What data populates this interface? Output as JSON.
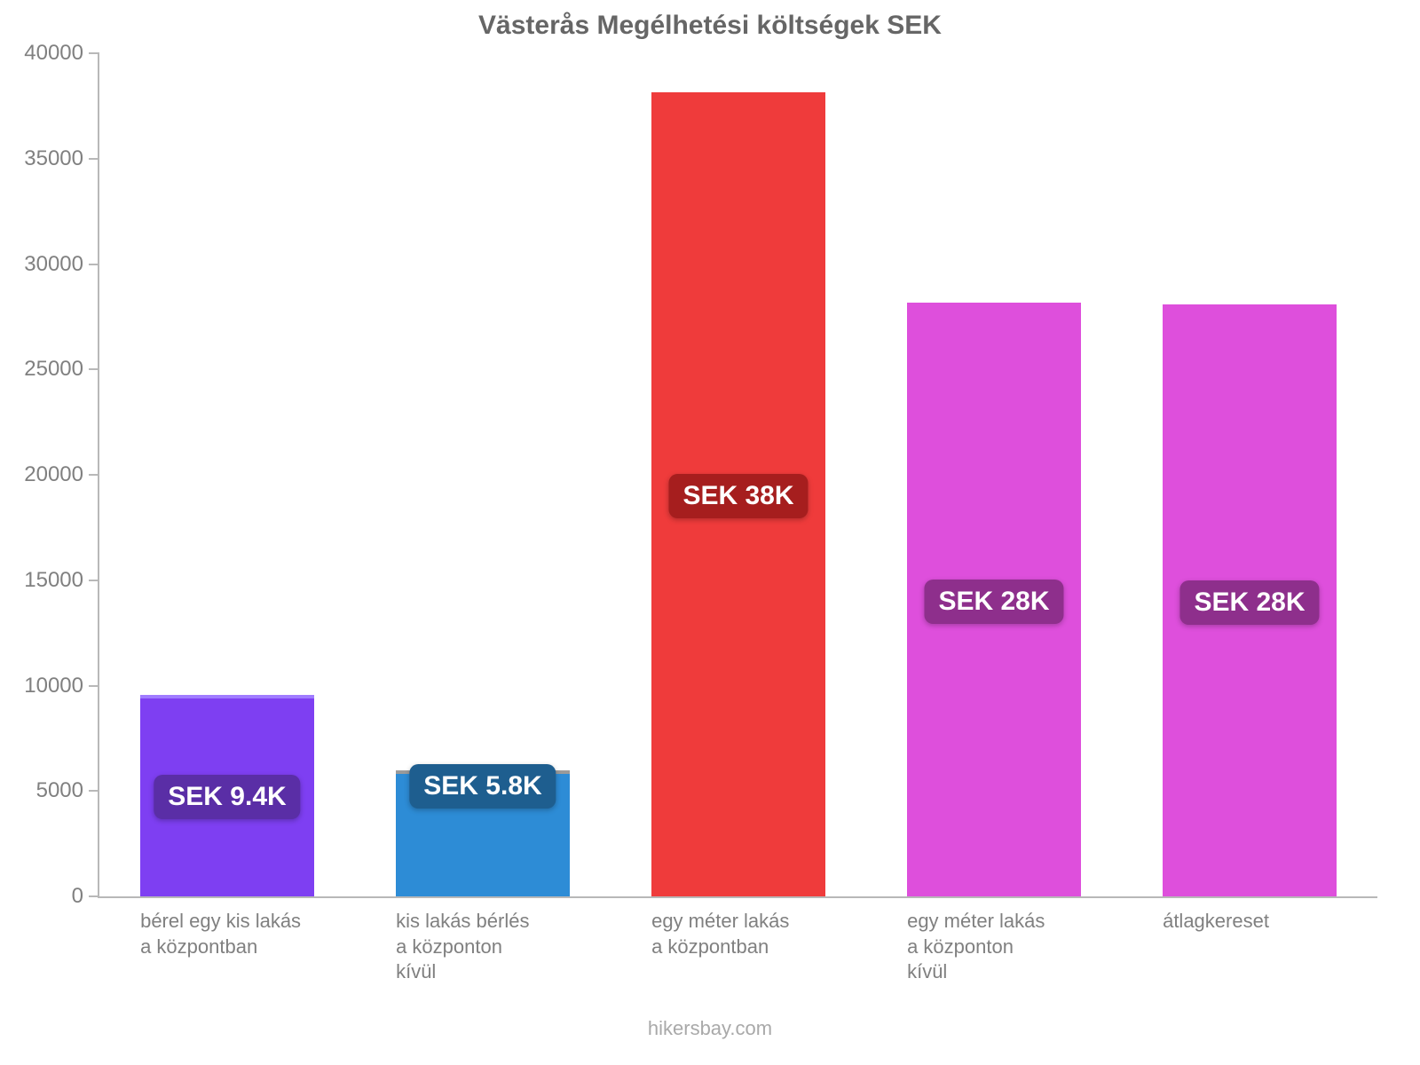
{
  "chart": {
    "type": "bar",
    "title": "Västerås Megélhetési költségek SEK",
    "title_fontsize": 30,
    "title_color": "#666666",
    "background_color": "#ffffff",
    "axis_color": "#b8b8b8",
    "tick_label_color": "#808080",
    "tick_label_fontsize": 24,
    "xlabel_fontsize": 22,
    "ylim_min": 0,
    "ylim_max": 40000,
    "ytick_step": 5000,
    "yticks": [
      {
        "v": 0,
        "label": "0"
      },
      {
        "v": 5000,
        "label": "5000"
      },
      {
        "v": 10000,
        "label": "10000"
      },
      {
        "v": 15000,
        "label": "15000"
      },
      {
        "v": 20000,
        "label": "20000"
      },
      {
        "v": 25000,
        "label": "25000"
      },
      {
        "v": 30000,
        "label": "30000"
      },
      {
        "v": 35000,
        "label": "35000"
      },
      {
        "v": 40000,
        "label": "40000"
      }
    ],
    "bar_width_ratio": 0.68,
    "value_label_fontsize": 30,
    "bars": [
      {
        "category": "bérel egy kis lakás\na központban",
        "value": 9400,
        "fill": "#7e3ff2",
        "top_line": "#a07cff",
        "value_label": "SEK 9.4K",
        "badge_bg": "#5a2ea6"
      },
      {
        "category": "kis lakás bérlés\na központon\nkívül",
        "value": 5800,
        "fill": "#2d8cd6",
        "top_line": "#9a9a9a",
        "value_label": "SEK 5.8K",
        "badge_bg": "#1e5e8f"
      },
      {
        "category": "egy méter lakás\na központban",
        "value": 38000,
        "fill": "#ef3b3b",
        "top_line": "#ef3b3b",
        "value_label": "SEK 38K",
        "badge_bg": "#a61e1e"
      },
      {
        "category": "egy méter lakás\na központon\nkívül",
        "value": 28000,
        "fill": "#de4fdc",
        "top_line": "#de4fdc",
        "value_label": "SEK 28K",
        "badge_bg": "#8e2f8c"
      },
      {
        "category": "átlagkereset",
        "value": 27900,
        "fill": "#de4fdc",
        "top_line": "#de4fdc",
        "value_label": "SEK 28K",
        "badge_bg": "#8e2f8c"
      }
    ],
    "footer": "hikersbay.com",
    "footer_color": "#a9a9a9",
    "footer_fontsize": 22
  }
}
